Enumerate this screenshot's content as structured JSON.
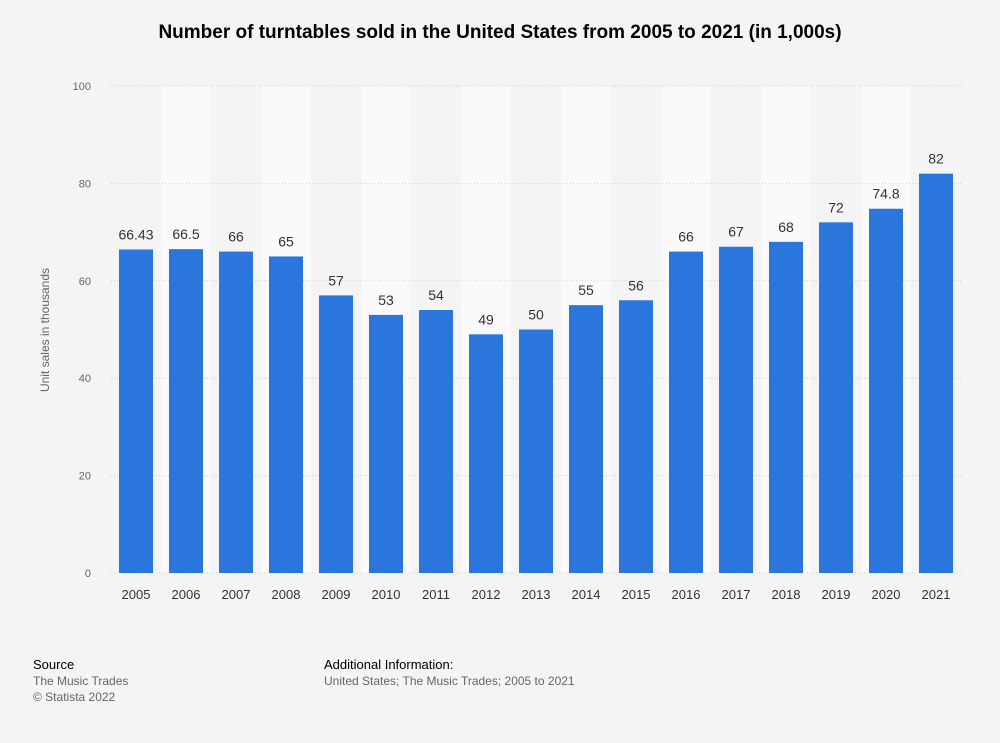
{
  "chart_data": {
    "type": "bar",
    "title": "Number of turntables sold in the United States from 2005 to 2021 (in 1,000s)",
    "xlabel": "",
    "ylabel": "Unit sales in thousands",
    "categories": [
      "2005",
      "2006",
      "2007",
      "2008",
      "2009",
      "2010",
      "2011",
      "2012",
      "2013",
      "2014",
      "2015",
      "2016",
      "2017",
      "2018",
      "2019",
      "2020",
      "2021"
    ],
    "values": [
      66.43,
      66.5,
      66,
      65,
      57,
      53,
      54,
      49,
      50,
      55,
      56,
      66,
      67,
      68,
      72,
      74.8,
      82
    ],
    "ylim": [
      0,
      100
    ],
    "yticks": [
      0,
      20,
      40,
      60,
      80,
      100
    ],
    "grid": true,
    "bar_color": "#2a76dd"
  },
  "footer": {
    "source_heading": "Source",
    "source_name": "The Music Trades",
    "copyright": "© Statista 2022",
    "info_heading": "Additional Information:",
    "info_text": "United States; The Music Trades; 2005 to 2021"
  }
}
